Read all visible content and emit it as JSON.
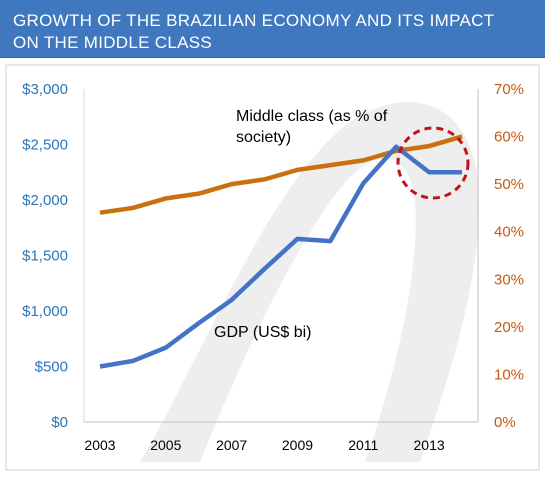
{
  "header": {
    "title_line1": "GROWTH OF THE BRAZILIAN ECONOMY AND ITS IMPACT",
    "title_line2": "ON THE MIDDLE CLASS",
    "background_color": "#3f78bf"
  },
  "chart_data": {
    "type": "line",
    "title": "GROWTH OF THE BRAZILIAN ECONOMY AND ITS IMPACT ON THE MIDDLE CLASS",
    "x": [
      2003,
      2004,
      2005,
      2006,
      2007,
      2008,
      2009,
      2010,
      2011,
      2012,
      2013,
      2014
    ],
    "x_tick_labels": [
      "2003",
      "2005",
      "2007",
      "2009",
      "2011",
      "2013"
    ],
    "y_left": {
      "range": [
        0,
        3000
      ],
      "tick_labels": [
        "$0",
        "$500",
        "$1,000",
        "$1,500",
        "$2,000",
        "$2,500",
        "$3,000"
      ],
      "color": "#2e75b6"
    },
    "y_right": {
      "range": [
        0,
        70
      ],
      "tick_labels": [
        "0%",
        "10%",
        "20%",
        "30%",
        "40%",
        "50%",
        "60%",
        "70%"
      ],
      "color": "#c55a11"
    },
    "series": [
      {
        "name": "GDP (US$ bi)",
        "axis": "left",
        "color": "#4472c4",
        "values": [
          500,
          550,
          670,
          890,
          1100,
          1380,
          1650,
          1630,
          2150,
          2480,
          2250,
          2250
        ]
      },
      {
        "name": "Middle class (as % of society)",
        "axis": "right",
        "color": "#c9700f",
        "values": [
          44,
          45,
          47,
          48,
          50,
          51,
          53,
          54,
          55,
          57,
          58,
          60
        ]
      }
    ],
    "annotations": {
      "gdp_label": "GDP (US$ bi)",
      "middle_class_label_line1": "Middle class (as % of",
      "middle_class_label_line2": "society)",
      "highlight": "dashed circle around 2012-2014",
      "highlight_color": "#c0141b"
    },
    "grid": false,
    "legend": "none"
  }
}
